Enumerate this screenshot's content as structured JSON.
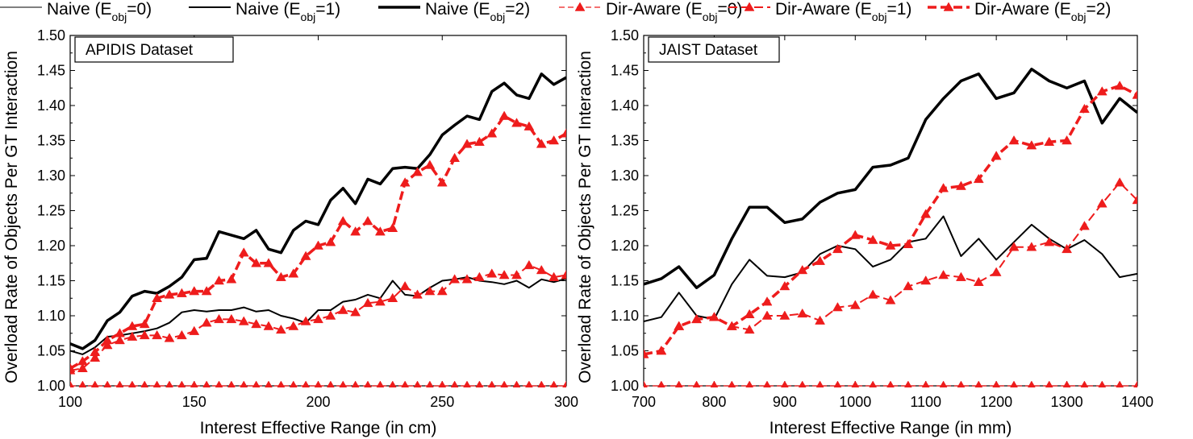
{
  "chart_data": [
    {
      "type": "line",
      "title": "APIDIS Dataset",
      "xlabel": "Interest Effective Range (in cm)",
      "ylabel": "Overload Rate of Objects Per GT Interaction",
      "xlim": [
        100,
        300
      ],
      "ylim": [
        1.0,
        1.5
      ],
      "xticks": [
        100,
        150,
        200,
        250,
        300
      ],
      "yticks": [
        "1.00",
        "1.05",
        "1.10",
        "1.15",
        "1.20",
        "1.25",
        "1.30",
        "1.35",
        "1.40",
        "1.45",
        "1.50"
      ],
      "x": [
        100,
        105,
        110,
        115,
        120,
        125,
        130,
        135,
        140,
        145,
        150,
        155,
        160,
        165,
        170,
        175,
        180,
        185,
        190,
        195,
        200,
        205,
        210,
        215,
        220,
        225,
        230,
        235,
        240,
        245,
        250,
        255,
        260,
        265,
        270,
        275,
        280,
        285,
        290,
        295,
        300
      ],
      "series": [
        {
          "name": "Naive (E_obj=0)",
          "values": [
            1.0,
            1.0,
            1.0,
            1.0,
            1.0,
            1.0,
            1.0,
            1.0,
            1.0,
            1.0,
            1.0,
            1.0,
            1.0,
            1.0,
            1.0,
            1.0,
            1.0,
            1.0,
            1.0,
            1.0,
            1.0,
            1.0,
            1.0,
            1.0,
            1.0,
            1.0,
            1.0,
            1.0,
            1.0,
            1.0,
            1.0,
            1.0,
            1.0,
            1.0,
            1.0,
            1.0,
            1.0,
            1.0,
            1.0,
            1.0,
            1.0
          ]
        },
        {
          "name": "Naive (E_obj=1)",
          "values": [
            1.05,
            1.045,
            1.055,
            1.07,
            1.072,
            1.075,
            1.078,
            1.082,
            1.09,
            1.105,
            1.108,
            1.106,
            1.108,
            1.108,
            1.112,
            1.106,
            1.108,
            1.1,
            1.096,
            1.09,
            1.108,
            1.108,
            1.12,
            1.123,
            1.13,
            1.125,
            1.15,
            1.13,
            1.128,
            1.14,
            1.15,
            1.152,
            1.155,
            1.15,
            1.148,
            1.145,
            1.15,
            1.14,
            1.152,
            1.148,
            1.153
          ]
        },
        {
          "name": "Naive (E_obj=2)",
          "values": [
            1.06,
            1.053,
            1.065,
            1.093,
            1.105,
            1.128,
            1.135,
            1.132,
            1.142,
            1.155,
            1.18,
            1.182,
            1.22,
            1.215,
            1.21,
            1.222,
            1.195,
            1.19,
            1.222,
            1.235,
            1.23,
            1.265,
            1.282,
            1.26,
            1.295,
            1.288,
            1.31,
            1.312,
            1.31,
            1.33,
            1.358,
            1.372,
            1.385,
            1.38,
            1.42,
            1.432,
            1.415,
            1.41,
            1.445,
            1.43,
            1.44
          ]
        },
        {
          "name": "Dir-Aware (E_obj=0)",
          "values": [
            1.0,
            1.0,
            1.0,
            1.0,
            1.0,
            1.0,
            1.0,
            1.0,
            1.0,
            1.0,
            1.0,
            1.0,
            1.0,
            1.0,
            1.0,
            1.0,
            1.0,
            1.0,
            1.0,
            1.0,
            1.0,
            1.0,
            1.0,
            1.0,
            1.0,
            1.0,
            1.0,
            1.0,
            1.0,
            1.0,
            1.0,
            1.0,
            1.0,
            1.0,
            1.0,
            1.0,
            1.0,
            1.0,
            1.0,
            1.0,
            1.0
          ]
        },
        {
          "name": "Dir-Aware (E_obj=1)",
          "values": [
            1.022,
            1.025,
            1.04,
            1.058,
            1.065,
            1.07,
            1.072,
            1.072,
            1.068,
            1.072,
            1.078,
            1.09,
            1.095,
            1.095,
            1.092,
            1.088,
            1.085,
            1.08,
            1.085,
            1.092,
            1.095,
            1.1,
            1.108,
            1.105,
            1.118,
            1.12,
            1.125,
            1.142,
            1.13,
            1.135,
            1.135,
            1.152,
            1.152,
            1.155,
            1.16,
            1.158,
            1.158,
            1.172,
            1.165,
            1.155,
            1.158
          ]
        },
        {
          "name": "Dir-Aware (E_obj=2)",
          "values": [
            1.025,
            1.035,
            1.048,
            1.065,
            1.075,
            1.085,
            1.088,
            1.125,
            1.13,
            1.132,
            1.135,
            1.135,
            1.15,
            1.152,
            1.19,
            1.175,
            1.175,
            1.155,
            1.16,
            1.185,
            1.2,
            1.205,
            1.235,
            1.22,
            1.235,
            1.22,
            1.225,
            1.29,
            1.305,
            1.315,
            1.29,
            1.325,
            1.345,
            1.348,
            1.36,
            1.385,
            1.375,
            1.37,
            1.345,
            1.35,
            1.36
          ]
        }
      ]
    },
    {
      "type": "line",
      "title": "JAIST Dataset",
      "xlabel": "Interest Effective Range (in mm)",
      "ylabel": "Overload Rate of Objects Per GT Interaction",
      "xlim": [
        700,
        1400
      ],
      "ylim": [
        1.0,
        1.5
      ],
      "xticks": [
        700,
        800,
        900,
        1000,
        1100,
        1200,
        1300,
        1400
      ],
      "yticks": [
        "1.00",
        "1.05",
        "1.10",
        "1.15",
        "1.20",
        "1.25",
        "1.30",
        "1.35",
        "1.40",
        "1.45",
        "1.50"
      ],
      "x": [
        700,
        725,
        750,
        775,
        800,
        825,
        850,
        875,
        900,
        925,
        950,
        975,
        1000,
        1025,
        1050,
        1075,
        1100,
        1125,
        1150,
        1175,
        1200,
        1225,
        1250,
        1275,
        1300,
        1325,
        1350,
        1375,
        1400
      ],
      "series": [
        {
          "name": "Naive (E_obj=0)",
          "values": [
            1.0,
            1.0,
            1.0,
            1.0,
            1.0,
            1.0,
            1.0,
            1.0,
            1.0,
            1.0,
            1.0,
            1.0,
            1.0,
            1.0,
            1.0,
            1.0,
            1.0,
            1.0,
            1.0,
            1.0,
            1.0,
            1.0,
            1.0,
            1.0,
            1.0,
            1.0,
            1.0,
            1.0,
            1.0
          ]
        },
        {
          "name": "Naive (E_obj=1)",
          "values": [
            1.092,
            1.098,
            1.133,
            1.1,
            1.095,
            1.145,
            1.18,
            1.157,
            1.155,
            1.162,
            1.188,
            1.2,
            1.195,
            1.17,
            1.18,
            1.205,
            1.21,
            1.242,
            1.185,
            1.21,
            1.18,
            1.205,
            1.23,
            1.21,
            1.195,
            1.208,
            1.188,
            1.155,
            1.16
          ]
        },
        {
          "name": "Naive (E_obj=2)",
          "values": [
            1.145,
            1.153,
            1.17,
            1.14,
            1.158,
            1.21,
            1.255,
            1.255,
            1.233,
            1.238,
            1.262,
            1.275,
            1.28,
            1.312,
            1.315,
            1.325,
            1.38,
            1.41,
            1.435,
            1.445,
            1.41,
            1.418,
            1.452,
            1.435,
            1.425,
            1.435,
            1.375,
            1.41,
            1.39
          ]
        },
        {
          "name": "Dir-Aware (E_obj=0)",
          "values": [
            1.0,
            1.0,
            1.0,
            1.0,
            1.0,
            1.0,
            1.0,
            1.0,
            1.0,
            1.0,
            1.0,
            1.0,
            1.0,
            1.0,
            1.0,
            1.0,
            1.0,
            1.0,
            1.0,
            1.0,
            1.0,
            1.0,
            1.0,
            1.0,
            1.0,
            1.0,
            1.0,
            1.0,
            1.0
          ]
        },
        {
          "name": "Dir-Aware (E_obj=1)",
          "values": [
            1.045,
            1.05,
            1.085,
            1.095,
            1.098,
            1.085,
            1.08,
            1.1,
            1.1,
            1.103,
            1.093,
            1.112,
            1.115,
            1.13,
            1.122,
            1.142,
            1.15,
            1.158,
            1.155,
            1.148,
            1.162,
            1.198,
            1.198,
            1.205,
            1.195,
            1.228,
            1.26,
            1.29,
            1.265
          ]
        },
        {
          "name": "Dir-Aware (E_obj=2)",
          "values": [
            1.045,
            1.05,
            1.085,
            1.095,
            1.098,
            1.085,
            1.102,
            1.12,
            1.142,
            1.165,
            1.178,
            1.195,
            1.215,
            1.208,
            1.2,
            1.202,
            1.245,
            1.282,
            1.285,
            1.295,
            1.328,
            1.35,
            1.343,
            1.348,
            1.35,
            1.395,
            1.42,
            1.428,
            1.415
          ]
        }
      ]
    }
  ],
  "legend": {
    "items": [
      {
        "prefix": "Naive (E",
        "sub": "obj",
        "suffix": "=0)"
      },
      {
        "prefix": "Naive (E",
        "sub": "obj",
        "suffix": "=1)"
      },
      {
        "prefix": "Naive (E",
        "sub": "obj",
        "suffix": "=2)"
      },
      {
        "prefix": "Dir-Aware (E",
        "sub": "obj",
        "suffix": "=0)"
      },
      {
        "prefix": "Dir-Aware (E",
        "sub": "obj",
        "suffix": "=1)"
      },
      {
        "prefix": "Dir-Aware (E",
        "sub": "obj",
        "suffix": "=2)"
      }
    ]
  },
  "colors": {
    "naive": "#000000",
    "dir_aware": "#ee1c1c"
  }
}
